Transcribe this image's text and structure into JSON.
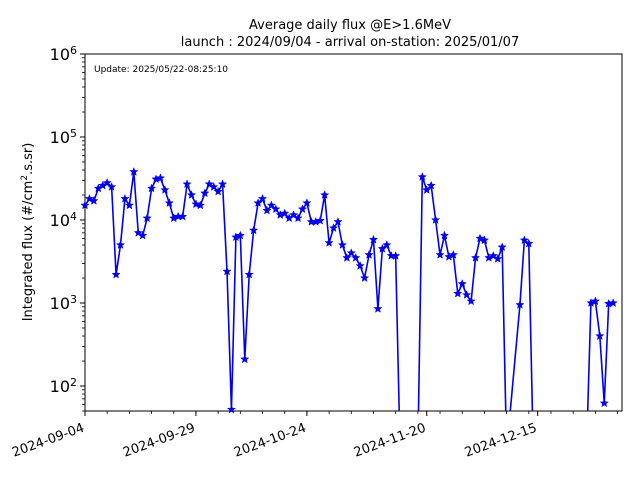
{
  "chart_data": {
    "type": "line",
    "title": "Average daily flux @E>1.6MeV",
    "subtitle": "launch : 2024/09/04 - arrival on-station: 2025/01/07",
    "annotation": "Update: 2025/05/22-08:25:10",
    "ylabel": "Integrated flux (#/cm².s.sr)",
    "xlabel": "",
    "y_scale": "log",
    "ylim": [
      50,
      1000000
    ],
    "xlim": [
      "2024-09-04",
      "2025-01-03"
    ],
    "y_ticks": [
      {
        "label": "10",
        "exp": "2",
        "value": 100
      },
      {
        "label": "10",
        "exp": "3",
        "value": 1000
      },
      {
        "label": "10",
        "exp": "4",
        "value": 10000
      },
      {
        "label": "10",
        "exp": "5",
        "value": 100000
      },
      {
        "label": "10",
        "exp": "6",
        "value": 1000000
      }
    ],
    "x_ticks": [
      "2024-09-04",
      "2024-09-29",
      "2024-10-24",
      "2024-11-20",
      "2024-12-15"
    ],
    "grid": false,
    "series_color": "#0000ee",
    "marker": "star",
    "series": [
      {
        "points": [
          [
            "2024-09-04",
            15000
          ],
          [
            "2024-09-05",
            18000
          ],
          [
            "2024-09-06",
            17000
          ],
          [
            "2024-09-07",
            24000
          ],
          [
            "2024-09-08",
            26000
          ],
          [
            "2024-09-09",
            28000
          ],
          [
            "2024-09-10",
            25000
          ],
          [
            "2024-09-11",
            2200
          ],
          [
            "2024-09-12",
            5000
          ],
          [
            "2024-09-13",
            18000
          ],
          [
            "2024-09-14",
            15000
          ],
          [
            "2024-09-15",
            38000
          ],
          [
            "2024-09-16",
            7000
          ],
          [
            "2024-09-17",
            6500
          ],
          [
            "2024-09-18",
            10500
          ],
          [
            "2024-09-19",
            24000
          ],
          [
            "2024-09-20",
            31000
          ],
          [
            "2024-09-21",
            32000
          ],
          [
            "2024-09-22",
            23000
          ],
          [
            "2024-09-23",
            16000
          ],
          [
            "2024-09-24",
            10500
          ],
          [
            "2024-09-25",
            11000
          ],
          [
            "2024-09-26",
            11000
          ],
          [
            "2024-09-27",
            27000
          ],
          [
            "2024-09-28",
            20000
          ],
          [
            "2024-09-29",
            15500
          ],
          [
            "2024-09-30",
            15000
          ],
          [
            "2024-10-01",
            21000
          ],
          [
            "2024-10-02",
            27000
          ],
          [
            "2024-10-03",
            25000
          ],
          [
            "2024-10-04",
            22000
          ],
          [
            "2024-10-05",
            27000
          ],
          [
            "2024-10-06",
            2400
          ],
          [
            "2024-10-07",
            52
          ],
          [
            "2024-10-08",
            6200
          ],
          [
            "2024-10-09",
            6500
          ],
          [
            "2024-10-10",
            210
          ],
          [
            "2024-10-11",
            2200
          ],
          [
            "2024-10-12",
            7500
          ],
          [
            "2024-10-13",
            16000
          ],
          [
            "2024-10-14",
            18000
          ],
          [
            "2024-10-15",
            13000
          ],
          [
            "2024-10-16",
            15000
          ],
          [
            "2024-10-17",
            13500
          ],
          [
            "2024-10-18",
            11500
          ],
          [
            "2024-10-19",
            12000
          ],
          [
            "2024-10-20",
            10500
          ],
          [
            "2024-10-21",
            11500
          ],
          [
            "2024-10-22",
            10500
          ],
          [
            "2024-10-23",
            13500
          ],
          [
            "2024-10-24",
            16000
          ],
          [
            "2024-10-25",
            9500
          ],
          [
            "2024-10-26",
            9500
          ],
          [
            "2024-10-27",
            9800
          ],
          [
            "2024-10-28",
            20000
          ],
          [
            "2024-10-29",
            5300
          ],
          [
            "2024-10-30",
            8000
          ],
          [
            "2024-10-31",
            9500
          ],
          [
            "2024-11-01",
            5000
          ],
          [
            "2024-11-02",
            3500
          ],
          [
            "2024-11-03",
            4000
          ],
          [
            "2024-11-04",
            3500
          ],
          [
            "2024-11-05",
            2800
          ],
          [
            "2024-11-06",
            2000
          ],
          [
            "2024-11-07",
            3800
          ],
          [
            "2024-11-08",
            5800
          ],
          [
            "2024-11-09",
            850
          ],
          [
            "2024-11-10",
            4500
          ],
          [
            "2024-11-11",
            5000
          ],
          [
            "2024-11-12",
            3700
          ],
          [
            "2024-11-13",
            3700
          ],
          [
            "2024-11-14",
            0
          ],
          [
            "2024-11-18",
            0
          ],
          [
            "2024-11-19",
            33000
          ],
          [
            "2024-11-20",
            23000
          ],
          [
            "2024-11-21",
            26000
          ],
          [
            "2024-11-22",
            10000
          ],
          [
            "2024-11-23",
            3800
          ],
          [
            "2024-11-24",
            6500
          ],
          [
            "2024-11-25",
            3600
          ],
          [
            "2024-11-26",
            3800
          ],
          [
            "2024-11-27",
            1300
          ],
          [
            "2024-11-28",
            1700
          ],
          [
            "2024-11-29",
            1250
          ],
          [
            "2024-11-30",
            1050
          ],
          [
            "2024-12-01",
            3500
          ],
          [
            "2024-12-02",
            6000
          ],
          [
            "2024-12-03",
            5700
          ],
          [
            "2024-12-04",
            3500
          ],
          [
            "2024-12-05",
            3700
          ],
          [
            "2024-12-06",
            3400
          ],
          [
            "2024-12-07",
            4700
          ],
          [
            "2024-12-08",
            0
          ],
          [
            "2024-12-11",
            950
          ],
          [
            "2024-12-12",
            5700
          ],
          [
            "2024-12-13",
            5200
          ],
          [
            "2024-12-14",
            0
          ],
          [
            "2024-12-26",
            0
          ],
          [
            "2024-12-27",
            1000
          ],
          [
            "2024-12-28",
            1050
          ],
          [
            "2024-12-29",
            400
          ],
          [
            "2024-12-30",
            62
          ],
          [
            "2024-12-31",
            980
          ],
          [
            "2025-01-01",
            1000
          ]
        ]
      }
    ]
  }
}
